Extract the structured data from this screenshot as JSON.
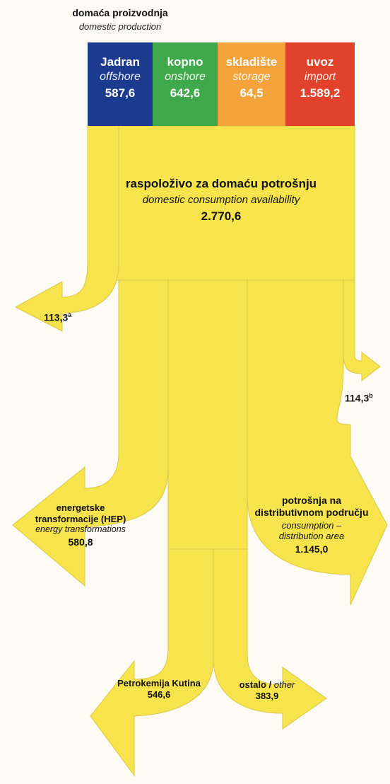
{
  "header": {
    "title": "domaća proizvodnja",
    "subtitle": "domestic production"
  },
  "sources": [
    {
      "name": "Jadran",
      "name_en": "offshore",
      "value": "587,6",
      "color": "#1c3a8e"
    },
    {
      "name": "kopno",
      "name_en": "onshore",
      "value": "642,6",
      "color": "#3fa84a"
    },
    {
      "name": "skladište",
      "name_en": "storage",
      "value": "64,5",
      "color": "#f4a23a"
    },
    {
      "name": "uvoz",
      "name_en": "import",
      "value": "1.589,2",
      "color": "#e2422b"
    }
  ],
  "flow_color": "#f7e44c",
  "stroke_color": "#d9c84a",
  "availability": {
    "label": "raspoloživo za domaću potrošnju",
    "label_en": "domestic consumption availability",
    "value": "2.770,6"
  },
  "outflow_a": {
    "value": "113,3",
    "note": "a"
  },
  "outflow_b": {
    "value": "114,3",
    "note": "b"
  },
  "energy": {
    "label_line1": "energetske",
    "label_line2": "transformacije (HEP)",
    "label_en": "energy  transformations",
    "value": "580,8"
  },
  "distribution": {
    "label_line1": "potrošnja na",
    "label_line2": "distributivnom području",
    "label_en_line1": "consumption –",
    "label_en_line2": "distribution area",
    "value": "1.145,0"
  },
  "petrokemija": {
    "label": "Petrokemija Kutina",
    "value": "546,6"
  },
  "other": {
    "label": "ostalo /",
    "label_en": "other",
    "value": "383,9"
  }
}
